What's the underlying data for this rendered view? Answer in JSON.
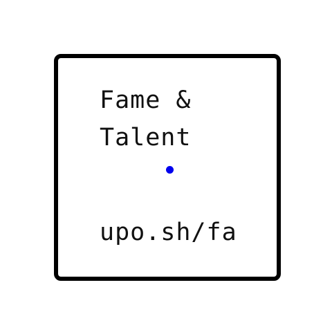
{
  "card": {
    "title_line1": "Fame &",
    "title_line2": "Talent",
    "url": "upo.sh/fa"
  },
  "colors": {
    "background": "#ffffff",
    "border": "#000000",
    "text": "#111111",
    "accent_dot": "#0000ee"
  }
}
